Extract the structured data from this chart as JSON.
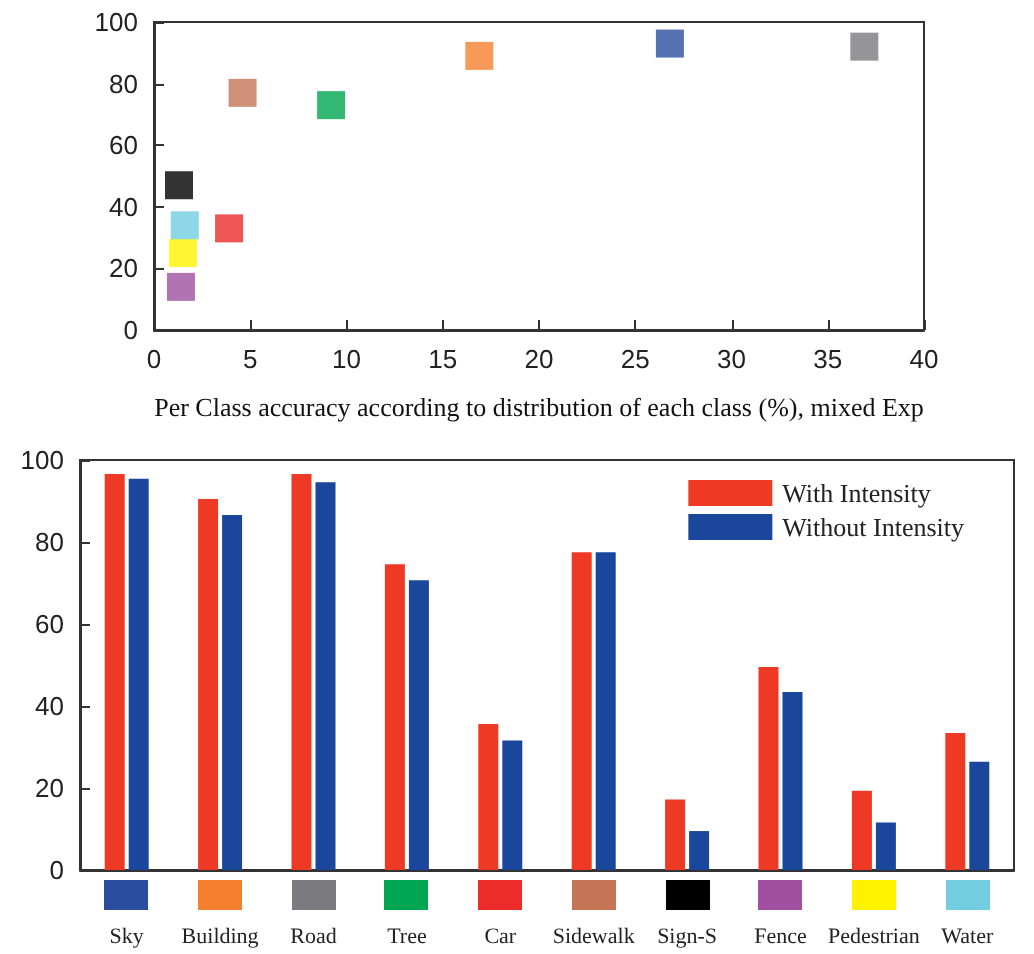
{
  "chart_data": [
    {
      "type": "scatter",
      "xlabel": "Per Class accuracy according to distribution of each class (%), mixed Exp",
      "x": [
        26.8,
        16.9,
        36.9,
        9.2,
        3.9,
        4.6,
        1.3,
        1.4,
        1.5,
        1.6
      ],
      "values": [
        93,
        89,
        92,
        73,
        33,
        77,
        47,
        14,
        25,
        34
      ],
      "colors": [
        "#2a4d9f",
        "#f47f2f",
        "#7b7b7f",
        "#00a651",
        "#ec2b2b",
        "#c57556",
        "#000000",
        "#9f50a0",
        "#fff200",
        "#72cde0"
      ],
      "marker": "square",
      "xlim": [
        0,
        40
      ],
      "xticks": [
        0,
        5,
        10,
        15,
        20,
        25,
        30,
        35,
        40
      ],
      "ylim": [
        0,
        100
      ],
      "yticks": [
        0,
        20,
        40,
        60,
        80,
        100
      ],
      "grid": false
    },
    {
      "type": "bar",
      "categories": [
        "Sky",
        "Building",
        "Road",
        "Tree",
        "Car",
        "Sidewalk",
        "Sign-S",
        "Fence",
        "Pedestrian",
        "Water"
      ],
      "series": [
        {
          "name": "With Intensity",
          "color": "#ee3a24",
          "values": [
            96.6,
            90.5,
            96.6,
            74.6,
            35.6,
            77.5,
            17.2,
            49.5,
            19.3,
            33.4
          ]
        },
        {
          "name": "Without Intensity",
          "color": "#1a479b",
          "values": [
            95.4,
            86.6,
            94.6,
            70.7,
            31.6,
            77.5,
            9.5,
            43.4,
            11.6,
            26.4
          ]
        }
      ],
      "ylim": [
        0,
        100
      ],
      "yticks": [
        0,
        20,
        40,
        60,
        80,
        100
      ],
      "grid": false,
      "legend": "top right"
    }
  ]
}
